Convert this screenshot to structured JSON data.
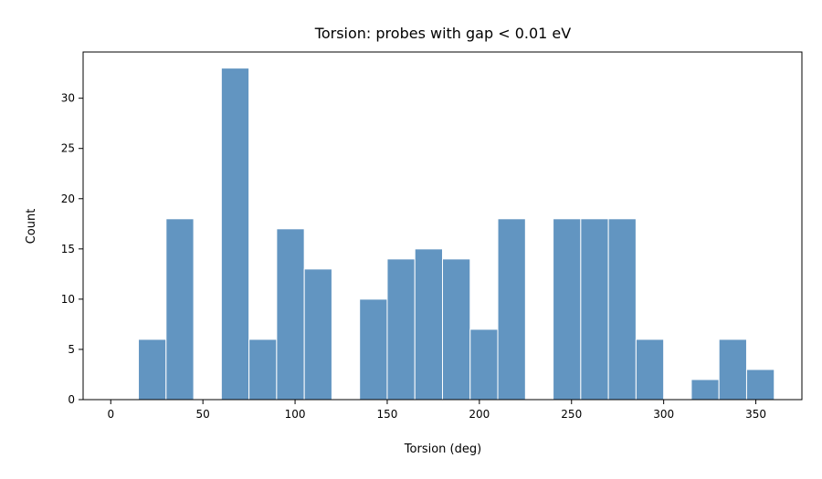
{
  "chart_data": {
    "type": "bar",
    "title": "Torsion: probes with gap < 0.01 eV",
    "xlabel": "Torsion (deg)",
    "ylabel": "Count",
    "xlim": [
      -15,
      375
    ],
    "ylim": [
      0,
      34.6
    ],
    "xticks": [
      0,
      50,
      100,
      150,
      200,
      250,
      300,
      350
    ],
    "yticks": [
      0,
      5,
      10,
      15,
      20,
      25,
      30
    ],
    "bin_width": 15,
    "bin_starts": [
      0,
      15,
      30,
      45,
      60,
      75,
      90,
      105,
      120,
      135,
      150,
      165,
      180,
      195,
      210,
      225,
      240,
      255,
      270,
      285,
      300,
      315,
      330,
      345
    ],
    "values": [
      0,
      6,
      18,
      0,
      33,
      6,
      17,
      13,
      0,
      10,
      14,
      15,
      14,
      7,
      18,
      0,
      18,
      18,
      18,
      6,
      0,
      2,
      6,
      3
    ],
    "bar_color": "#6295c1",
    "bar_edge_color": "#ffffff",
    "grid": false
  }
}
